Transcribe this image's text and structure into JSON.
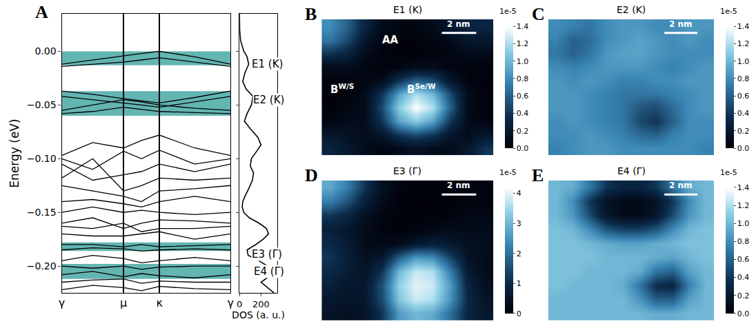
{
  "chart_data": [
    {
      "panel": "A",
      "type": "line",
      "x": [
        0,
        0.5,
        1,
        1.29,
        1.58,
        2.15,
        2.73
      ],
      "bands": [
        [
          -0.012,
          -0.008,
          -0.004,
          -0.002,
          0.0,
          -0.005,
          -0.012
        ],
        [
          -0.014,
          -0.012,
          -0.01,
          -0.008,
          -0.006,
          -0.01,
          -0.014
        ],
        [
          -0.037,
          -0.04,
          -0.044,
          -0.046,
          -0.048,
          -0.043,
          -0.037
        ],
        [
          -0.042,
          -0.045,
          -0.048,
          -0.05,
          -0.052,
          -0.047,
          -0.042
        ],
        [
          -0.055,
          -0.05,
          -0.045,
          -0.047,
          -0.05,
          -0.053,
          -0.055
        ],
        [
          -0.058,
          -0.056,
          -0.052,
          -0.054,
          -0.056,
          -0.057,
          -0.058
        ],
        [
          -0.097,
          -0.085,
          -0.09,
          -0.083,
          -0.078,
          -0.09,
          -0.097
        ],
        [
          -0.1,
          -0.11,
          -0.093,
          -0.1,
          -0.092,
          -0.105,
          -0.1
        ],
        [
          -0.105,
          -0.12,
          -0.115,
          -0.112,
          -0.105,
          -0.112,
          -0.105
        ],
        [
          -0.118,
          -0.1,
          -0.13,
          -0.125,
          -0.118,
          -0.12,
          -0.118
        ],
        [
          -0.125,
          -0.13,
          -0.135,
          -0.14,
          -0.13,
          -0.128,
          -0.125
        ],
        [
          -0.14,
          -0.138,
          -0.142,
          -0.145,
          -0.14,
          -0.135,
          -0.14
        ],
        [
          -0.15,
          -0.145,
          -0.15,
          -0.148,
          -0.15,
          -0.152,
          -0.15
        ],
        [
          -0.16,
          -0.155,
          -0.165,
          -0.16,
          -0.157,
          -0.158,
          -0.16
        ],
        [
          -0.163,
          -0.165,
          -0.16,
          -0.168,
          -0.165,
          -0.165,
          -0.163
        ],
        [
          -0.17,
          -0.172,
          -0.172,
          -0.17,
          -0.168,
          -0.175,
          -0.17
        ],
        [
          -0.18,
          -0.18,
          -0.182,
          -0.18,
          -0.182,
          -0.181,
          -0.18
        ],
        [
          -0.185,
          -0.183,
          -0.184,
          -0.186,
          -0.185,
          -0.184,
          -0.185
        ],
        [
          -0.195,
          -0.19,
          -0.193,
          -0.197,
          -0.195,
          -0.192,
          -0.195
        ],
        [
          -0.2,
          -0.202,
          -0.2,
          -0.203,
          -0.201,
          -0.2,
          -0.2
        ],
        [
          -0.208,
          -0.205,
          -0.21,
          -0.207,
          -0.209,
          -0.211,
          -0.208
        ],
        [
          -0.215,
          -0.213,
          -0.212,
          -0.216,
          -0.214,
          -0.215,
          -0.215
        ],
        [
          -0.222,
          -0.218,
          -0.22,
          -0.223,
          -0.219,
          -0.221,
          -0.222
        ]
      ],
      "color": "#000000",
      "shaded_ranges": [
        [
          -0.013,
          0.0
        ],
        [
          -0.06,
          -0.037
        ],
        [
          -0.186,
          -0.178
        ],
        [
          -0.212,
          -0.198
        ]
      ],
      "xlim": [
        0,
        2.73
      ],
      "xticks": [
        {
          "value": 0,
          "label": "γ"
        },
        {
          "value": 1,
          "label": "μ"
        },
        {
          "value": 1.58,
          "label": "κ"
        },
        {
          "value": 2.73,
          "label": "γ"
        }
      ],
      "ylim": [
        -0.225,
        0.035
      ],
      "yticks": [
        {
          "value": -0.2,
          "label": "−0.20"
        },
        {
          "value": -0.15,
          "label": "−0.15"
        },
        {
          "value": -0.1,
          "label": "−0.10"
        },
        {
          "value": -0.05,
          "label": "−0.05"
        },
        {
          "value": 0,
          "label": "0.00"
        }
      ],
      "y_label": "Energy (eV)",
      "grid": true
    },
    {
      "panel": "A",
      "type": "line",
      "x": [
        0,
        2,
        10,
        40,
        70,
        85,
        50,
        30,
        60,
        125,
        110,
        70,
        45,
        100,
        170,
        200,
        160,
        110,
        100,
        130,
        120,
        90,
        50,
        30,
        25,
        40,
        90,
        180,
        250,
        270,
        220,
        150,
        70,
        80,
        180,
        260,
        300,
        270,
        200,
        260,
        320
      ],
      "y": [
        0.035,
        0.02,
        0.01,
        0.0,
        -0.005,
        -0.012,
        -0.02,
        -0.028,
        -0.035,
        -0.042,
        -0.05,
        -0.058,
        -0.065,
        -0.072,
        -0.08,
        -0.087,
        -0.093,
        -0.1,
        -0.107,
        -0.113,
        -0.12,
        -0.127,
        -0.135,
        -0.14,
        -0.145,
        -0.15,
        -0.155,
        -0.16,
        -0.165,
        -0.17,
        -0.175,
        -0.18,
        -0.185,
        -0.19,
        -0.195,
        -0.2,
        -0.205,
        -0.21,
        -0.215,
        -0.22,
        -0.225
      ],
      "color": "#000000",
      "xlim": [
        0,
        350
      ],
      "xticks": [
        0,
        200
      ],
      "ylim": [
        -0.225,
        0.035
      ],
      "x_label": "DOS (a. u.)",
      "tick_labels": "x",
      "annotations": [
        {
          "text": "E1 (K)",
          "x": 105,
          "y": -0.012
        },
        {
          "text": "E2 (K)",
          "x": 120,
          "y": -0.045
        },
        {
          "text": "E3 (Γ)",
          "x": 105,
          "y": -0.189
        },
        {
          "text": "E4 (Γ)",
          "x": 125,
          "y": -0.205
        }
      ]
    },
    {
      "panel": "B",
      "type": "heatmap",
      "title": "E1 (K)",
      "tick_labels": false,
      "z": [
        [
          0.8,
          0.6,
          0.3,
          0.1,
          0.05,
          0.05,
          0.1,
          0.2,
          0.3,
          0.3
        ],
        [
          0.7,
          0.5,
          0.2,
          0.05,
          0.02,
          0.02,
          0.05,
          0.1,
          0.2,
          0.2
        ],
        [
          0.4,
          0.3,
          0.1,
          0.03,
          0.02,
          0.02,
          0.03,
          0.05,
          0.1,
          0.1
        ],
        [
          0.1,
          0.1,
          0.05,
          0.03,
          0.05,
          0.1,
          0.1,
          0.05,
          0.03,
          0.03
        ],
        [
          0.03,
          0.03,
          0.05,
          0.1,
          0.4,
          0.6,
          0.5,
          0.2,
          0.05,
          0.02
        ],
        [
          0.02,
          0.03,
          0.1,
          0.4,
          0.9,
          1.2,
          1.0,
          0.5,
          0.1,
          0.02
        ],
        [
          0.02,
          0.05,
          0.1,
          0.5,
          1.1,
          1.4,
          1.2,
          0.6,
          0.1,
          0.03
        ],
        [
          0.05,
          0.1,
          0.1,
          0.4,
          0.9,
          1.1,
          0.9,
          0.4,
          0.1,
          0.05
        ],
        [
          0.2,
          0.15,
          0.1,
          0.2,
          0.4,
          0.5,
          0.4,
          0.2,
          0.1,
          0.2
        ],
        [
          0.3,
          0.2,
          0.1,
          0.05,
          0.1,
          0.15,
          0.1,
          0.1,
          0.2,
          0.4
        ]
      ],
      "colorbar": {
        "range": [
          0,
          1.4
        ],
        "ticks": [
          {
            "value": 0,
            "label": "0.0"
          },
          0.2,
          0.4,
          0.6,
          0.8,
          {
            "value": 1,
            "label": "1.0"
          },
          1.2,
          1.4
        ],
        "scale_label": "1e-5"
      },
      "scale_bar": "2 nm",
      "labels": [
        {
          "text": "AA",
          "x": 3.5,
          "y": 1.0
        },
        {
          "text": "B",
          "sup": "W/S",
          "x": 0.7,
          "y": 4.6
        },
        {
          "text": "B",
          "sup": "Se/W",
          "x": 5.3,
          "y": 4.6
        }
      ]
    },
    {
      "panel": "C",
      "type": "heatmap",
      "title": "E2 (K)",
      "tick_labels": false,
      "z": [
        [
          0.8,
          0.75,
          0.7,
          0.8,
          0.85,
          0.85,
          0.8,
          0.8,
          0.85,
          0.85
        ],
        [
          0.75,
          0.6,
          0.65,
          0.8,
          0.85,
          0.9,
          0.85,
          0.8,
          0.85,
          0.8
        ],
        [
          0.7,
          0.6,
          0.7,
          0.85,
          0.9,
          0.9,
          0.85,
          0.8,
          0.8,
          0.8
        ],
        [
          0.8,
          0.75,
          0.8,
          0.85,
          0.85,
          0.85,
          0.8,
          0.75,
          0.8,
          0.85
        ],
        [
          0.85,
          0.8,
          0.85,
          0.8,
          0.75,
          0.75,
          0.8,
          0.8,
          0.85,
          0.85
        ],
        [
          0.85,
          0.85,
          0.8,
          0.75,
          0.7,
          0.7,
          0.7,
          0.75,
          0.8,
          0.85
        ],
        [
          0.85,
          0.85,
          0.8,
          0.75,
          0.7,
          0.55,
          0.5,
          0.65,
          0.8,
          0.85
        ],
        [
          0.8,
          0.85,
          0.8,
          0.75,
          0.7,
          0.5,
          0.4,
          0.6,
          0.8,
          0.8
        ],
        [
          0.8,
          0.8,
          0.85,
          0.8,
          0.75,
          0.65,
          0.6,
          0.75,
          0.8,
          0.8
        ],
        [
          0.75,
          0.8,
          0.85,
          0.85,
          0.8,
          0.8,
          0.8,
          0.8,
          0.8,
          0.75
        ]
      ],
      "colorbar": {
        "range": [
          0,
          1.4
        ],
        "ticks": [
          {
            "value": 0,
            "label": "0.0"
          },
          0.2,
          0.4,
          0.6,
          0.8,
          {
            "value": 1,
            "label": "1.0"
          },
          1.2,
          1.4
        ],
        "scale_label": "1e-5"
      },
      "scale_bar": "2 nm"
    },
    {
      "panel": "D",
      "type": "heatmap",
      "title": "E3 (Γ)",
      "tick_labels": false,
      "z": [
        [
          2.8,
          2.2,
          1.2,
          0.4,
          0.1,
          0.05,
          0.05,
          0.1,
          0.1,
          0.1
        ],
        [
          2.2,
          1.6,
          0.8,
          0.3,
          0.05,
          0.03,
          0.03,
          0.05,
          0.1,
          0.1
        ],
        [
          1.2,
          0.9,
          0.4,
          0.15,
          0.05,
          0.03,
          0.05,
          0.1,
          0.2,
          0.2
        ],
        [
          0.8,
          0.6,
          0.3,
          0.1,
          0.05,
          0.1,
          0.2,
          0.3,
          0.3,
          0.3
        ],
        [
          1.0,
          0.7,
          0.3,
          0.2,
          0.3,
          0.6,
          0.8,
          0.6,
          0.4,
          0.3
        ],
        [
          1.2,
          0.8,
          0.4,
          0.6,
          1.8,
          2.6,
          2.4,
          1.4,
          0.5,
          0.3
        ],
        [
          1.0,
          0.7,
          0.5,
          1.2,
          3.0,
          3.8,
          3.6,
          2.2,
          0.7,
          0.3
        ],
        [
          0.8,
          0.6,
          0.6,
          1.6,
          3.4,
          4.0,
          3.8,
          2.6,
          0.9,
          0.4
        ],
        [
          0.6,
          0.5,
          0.6,
          1.5,
          3.2,
          3.8,
          3.6,
          2.5,
          1.0,
          0.5
        ],
        [
          0.5,
          0.4,
          0.5,
          1.2,
          2.6,
          3.0,
          2.8,
          2.0,
          0.9,
          0.6
        ]
      ],
      "colorbar": {
        "range": [
          0,
          4.2
        ],
        "ticks": [
          0,
          1,
          2,
          3,
          4
        ],
        "scale_label": "1e-5"
      },
      "scale_bar": "2 nm"
    },
    {
      "panel": "E",
      "type": "heatmap",
      "title": "E4 (Γ)",
      "tick_labels": false,
      "z": [
        [
          1.0,
          0.95,
          0.7,
          0.4,
          0.3,
          0.3,
          0.4,
          0.7,
          0.95,
          1.0
        ],
        [
          1.0,
          0.8,
          0.4,
          0.15,
          0.08,
          0.08,
          0.15,
          0.4,
          0.8,
          1.0
        ],
        [
          1.0,
          0.85,
          0.5,
          0.2,
          0.1,
          0.1,
          0.2,
          0.5,
          0.85,
          1.0
        ],
        [
          1.05,
          1.0,
          0.8,
          0.55,
          0.45,
          0.45,
          0.55,
          0.8,
          1.0,
          1.05
        ],
        [
          1.05,
          1.05,
          1.0,
          0.95,
          0.9,
          0.9,
          0.95,
          1.0,
          1.05,
          1.05
        ],
        [
          1.05,
          1.05,
          1.05,
          1.0,
          1.0,
          1.0,
          0.95,
          0.9,
          1.0,
          1.05
        ],
        [
          1.05,
          1.05,
          1.0,
          1.0,
          1.0,
          0.95,
          0.7,
          0.6,
          0.9,
          1.0
        ],
        [
          1.05,
          1.0,
          1.0,
          1.0,
          0.95,
          0.7,
          0.35,
          0.3,
          0.75,
          1.0
        ],
        [
          1.0,
          1.0,
          1.0,
          1.0,
          1.0,
          0.85,
          0.6,
          0.6,
          0.9,
          1.0
        ],
        [
          1.0,
          1.0,
          1.0,
          1.0,
          1.0,
          1.0,
          0.95,
          0.95,
          1.0,
          1.0
        ]
      ],
      "colorbar": {
        "range": [
          0,
          1.4
        ],
        "ticks": [
          {
            "value": 0,
            "label": "0.0"
          },
          0.2,
          0.4,
          0.6,
          0.8,
          {
            "value": 1,
            "label": "1.0"
          },
          1.2,
          1.4
        ],
        "scale_label": "1e-5"
      },
      "scale_bar": "2 nm"
    }
  ]
}
